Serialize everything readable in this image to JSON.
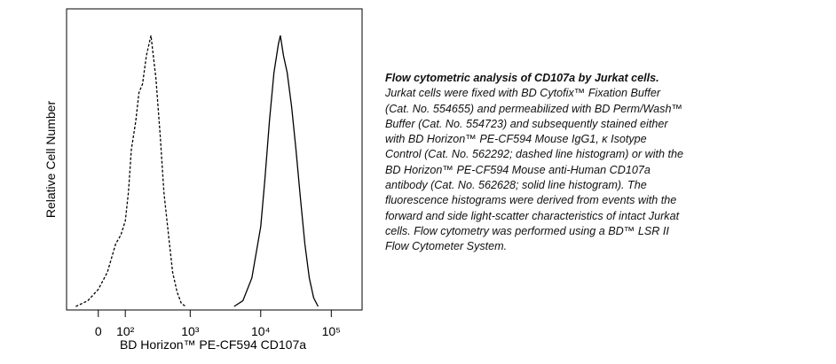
{
  "chart_data": {
    "type": "line",
    "xlabel": "BD Horizon™ PE-CF594 CD107a",
    "ylabel": "Relative Cell Number",
    "xscale": "asinh",
    "xlim": [
      -123,
      273000
    ],
    "xticks": [
      0,
      {
        "value": 100,
        "label": "10²"
      },
      {
        "value": 1000,
        "label": "10³"
      },
      {
        "value": 10000,
        "label": "10⁴"
      },
      {
        "value": 100000,
        "label": "10⁵"
      }
    ],
    "ylim": [
      0,
      100
    ],
    "series": [
      {
        "color": "#000000",
        "dashed": true,
        "x": [
          -80,
          -35,
          0,
          30,
          60,
          80,
          100,
          115,
          130,
          155,
          175,
          200,
          230,
          270,
          320,
          370,
          420,
          490,
          560,
          650,
          750,
          870
        ],
        "values": [
          0,
          2,
          6,
          12,
          22,
          25,
          30,
          40,
          55,
          65,
          75,
          78,
          88,
          95,
          80,
          60,
          40,
          25,
          12,
          5,
          1,
          0
        ]
      },
      {
        "color": "#000000",
        "dashed": false,
        "x": [
          4200,
          5600,
          7500,
          10000,
          11500,
          13300,
          15400,
          17800,
          19000,
          21000,
          23700,
          27400,
          31600,
          36500,
          42200,
          48700,
          56200,
          65000
        ],
        "values": [
          0,
          2,
          10,
          28,
          45,
          65,
          82,
          92,
          95,
          88,
          82,
          70,
          55,
          38,
          22,
          10,
          3,
          0
        ]
      }
    ]
  },
  "caption": {
    "title": "Flow cytometric analysis of CD107a by Jurkat cells.",
    "lines": [
      "Jurkat cells were fixed with BD Cytofix™ Fixation Buffer",
      "(Cat. No. 554655) and permeabilized with BD Perm/Wash™",
      "Buffer (Cat. No. 554723) and subsequently stained either",
      "with BD Horizon™ PE-CF594 Mouse IgG1, κ Isotype",
      "Control (Cat. No. 562292; dashed line histogram) or with the",
      "BD Horizon™ PE-CF594 Mouse anti-Human CD107a",
      "antibody (Cat. No. 562628; solid line histogram). The",
      "fluorescence histograms were derived from events with the",
      "forward and side light-scatter characteristics of intact Jurkat",
      "cells. Flow cytometry was performed using a BD™ LSR II",
      "Flow Cytometer System."
    ]
  }
}
